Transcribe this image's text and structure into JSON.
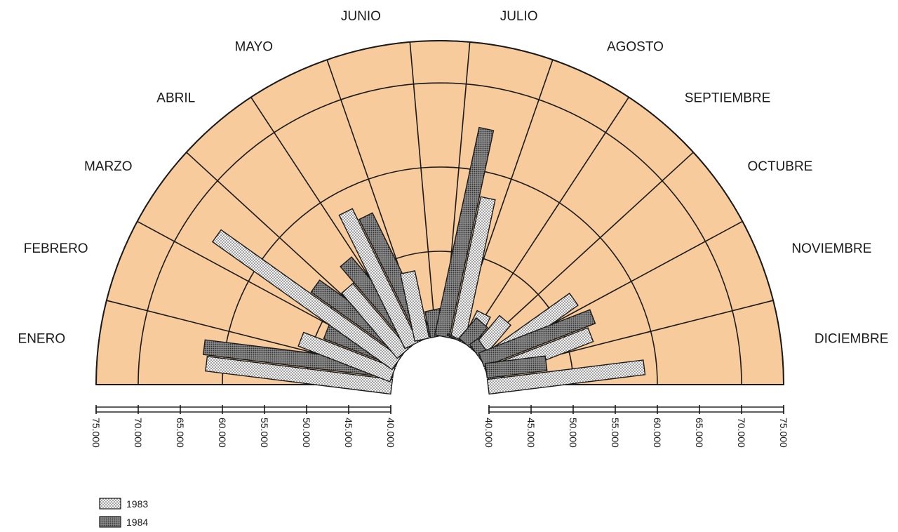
{
  "chart_data": {
    "type": "polar-bar",
    "categories": [
      "ENERO",
      "FEBRERO",
      "MARZO",
      "ABRIL",
      "MAYO",
      "JUNIO",
      "JULIO",
      "AGOSTO",
      "SEPTIEMBRE",
      "OCTUBRE",
      "NOVIEMBRE",
      "DICIEMBRE"
    ],
    "series": [
      {
        "name": "1983",
        "pattern": "fine-dots",
        "values": [
          62000,
          51500,
          66000,
          50000,
          57500,
          48000,
          57000,
          44000,
          45000,
          53000,
          53000,
          58500
        ]
      },
      {
        "name": "1984",
        "pattern": "dense-hatch",
        "values": [
          62500,
          49000,
          53000,
          52500,
          56000,
          43000,
          65000,
          40000,
          43000,
          41000,
          54000,
          47000
        ]
      }
    ],
    "axis": {
      "min": 40000,
      "max": 75000,
      "ticks": [
        "40.000",
        "45.000",
        "50.000",
        "55.000",
        "60.000",
        "65.000",
        "70.000",
        "75.000"
      ],
      "left_ticks": [
        "75.000",
        "70.000",
        "65.000",
        "60.000",
        "55.000",
        "50.000",
        "45.000",
        "40.000"
      ]
    },
    "ring_values": [
      50000,
      60000,
      70000,
      75000
    ],
    "legend": [
      {
        "label": "1983"
      },
      {
        "label": "1984"
      }
    ],
    "colors": {
      "fill": "#f8cb9d",
      "line": "#1a1a1a",
      "bar_1983": "#f2f2f2",
      "bar_1984": "#9a9a9a"
    }
  }
}
